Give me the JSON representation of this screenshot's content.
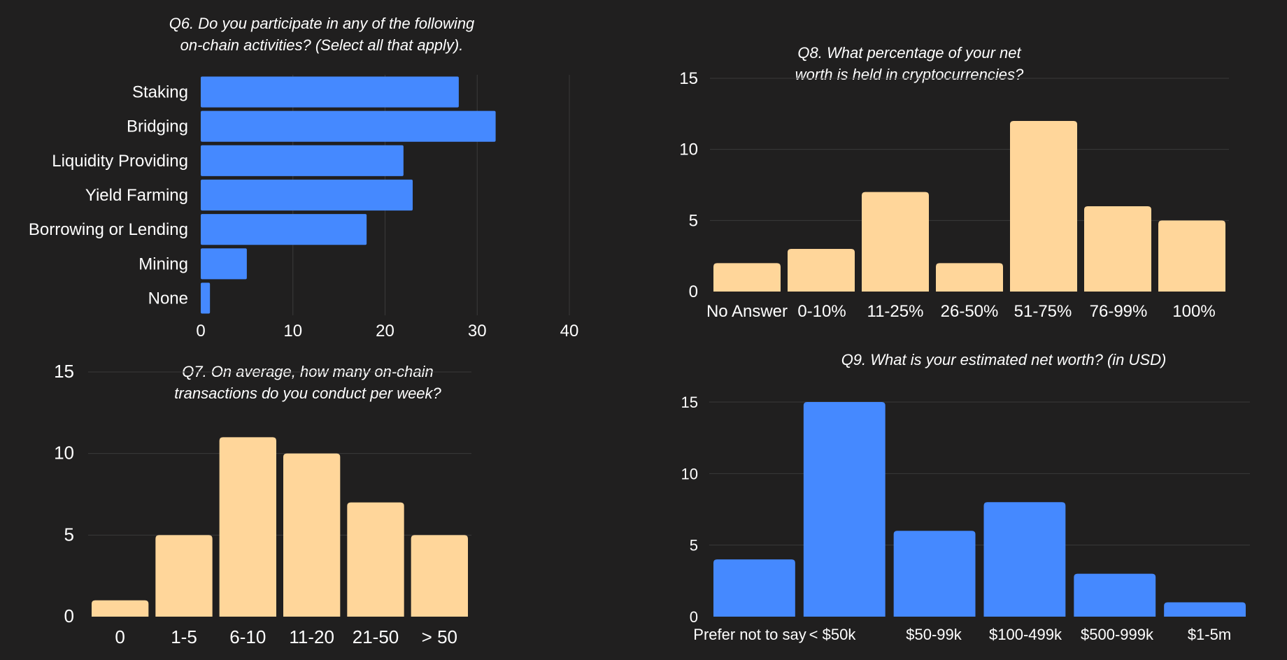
{
  "colors": {
    "background": "#201f1f",
    "blue": "#4589ff",
    "peach": "#ffd69a",
    "text": "#ffffff",
    "grid": "#3a3a3a"
  },
  "chart_data": [
    {
      "id": "q6",
      "type": "bar",
      "orientation": "horizontal",
      "title_lines": [
        "Q6. Do you participate in any of the following",
        "on-chain activities? (Select all that apply)."
      ],
      "categories": [
        "Staking",
        "Bridging",
        "Liquidity Providing",
        "Yield Farming",
        "Borrowing or Lending",
        "Mining",
        "None"
      ],
      "values": [
        28,
        32,
        22,
        23,
        18,
        5,
        1
      ],
      "xlim": [
        0,
        40
      ],
      "ticks": [
        "0",
        "10",
        "20",
        "30",
        "40"
      ],
      "color": "blue",
      "grid": true
    },
    {
      "id": "q7",
      "type": "bar",
      "orientation": "vertical",
      "title_lines": [
        "Q7. On average, how many on-chain",
        "transactions do you conduct per week?"
      ],
      "categories": [
        "0",
        "1-5",
        "6-10",
        "11-20",
        "21-50",
        "> 50"
      ],
      "values": [
        1,
        5,
        11,
        10,
        7,
        5
      ],
      "ylim": [
        0,
        15
      ],
      "ticks": [
        "0",
        "5",
        "10",
        "15"
      ],
      "color": "peach",
      "grid": true
    },
    {
      "id": "q8",
      "type": "bar",
      "orientation": "vertical",
      "title_lines": [
        "Q8. What percentage of your  net",
        "worth is held in cryptocurrencies?"
      ],
      "categories": [
        "No Answer",
        "0-10%",
        "11-25%",
        "26-50%",
        "51-75%",
        "76-99%",
        "100%"
      ],
      "values": [
        2,
        3,
        7,
        2,
        12,
        6,
        5
      ],
      "ylim": [
        0,
        15
      ],
      "ticks": [
        "0",
        "5",
        "10",
        "15"
      ],
      "color": "peach",
      "grid": true
    },
    {
      "id": "q9",
      "type": "bar",
      "orientation": "vertical",
      "title_lines": [
        "Q9. What is your estimated net worth? (in USD)"
      ],
      "categories": [
        "Prefer not to say",
        "< $50k",
        "$50-99k",
        "$100-499k",
        "$500-999k",
        "$1-5m"
      ],
      "values": [
        4,
        15,
        6,
        8,
        3,
        1
      ],
      "ylim": [
        0,
        15
      ],
      "ticks": [
        "0",
        "5",
        "10",
        "15"
      ],
      "color": "blue",
      "grid": true
    }
  ]
}
